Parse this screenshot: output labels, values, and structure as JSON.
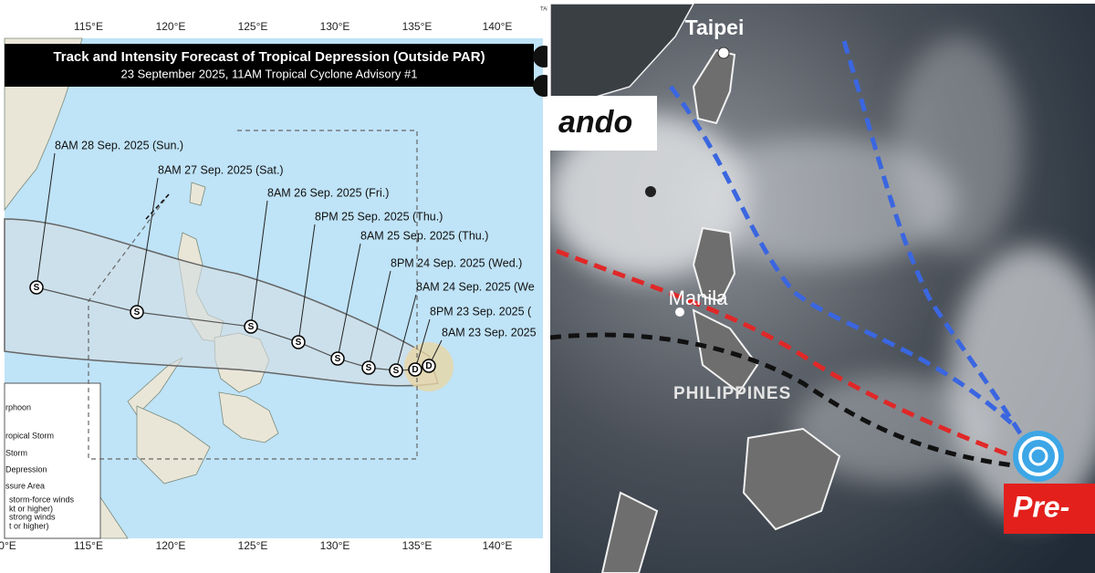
{
  "left": {
    "corner": "TAI",
    "lon_top": [
      "115°E",
      "120°E",
      "125°E",
      "130°E",
      "135°E",
      "140°E"
    ],
    "lon_bottom": [
      "0°E",
      "115°E",
      "120°E",
      "125°E",
      "130°E",
      "135°E",
      "140°E"
    ],
    "title": "Track and Intensity Forecast of Tropical Depression (Outside PAR)",
    "subtitle": "23 September 2025, 11AM Tropical Cyclone Advisory #1",
    "track_labels": [
      "8AM 28 Sep. 2025 (Sun.)",
      "8AM 27 Sep. 2025 (Sat.)",
      "8AM 26 Sep. 2025 (Fri.)",
      "8PM 25 Sep. 2025 (Thu.)",
      "8AM 25 Sep. 2025 (Thu.)",
      "8PM 24 Sep. 2025 (Wed.)",
      "8AM 24 Sep. 2025 (We",
      "8PM 23 Sep. 2025 (",
      "8AM 23 Sep. 2025"
    ],
    "track_markers": [
      "S",
      "S",
      "S",
      "S",
      "S",
      "S",
      "S",
      "D",
      "D"
    ],
    "legend": [
      "rphoon",
      "ropical Storm",
      "Storm",
      "Depression",
      "ssure Area",
      "storm-force winds",
      "kt or higher)",
      "strong winds",
      "t or higher)"
    ]
  },
  "right": {
    "city_north": "Taipei",
    "storm_name": "ando",
    "city_capital": "Manila",
    "country": "PHILIPPINES",
    "badge": "Pre-"
  }
}
